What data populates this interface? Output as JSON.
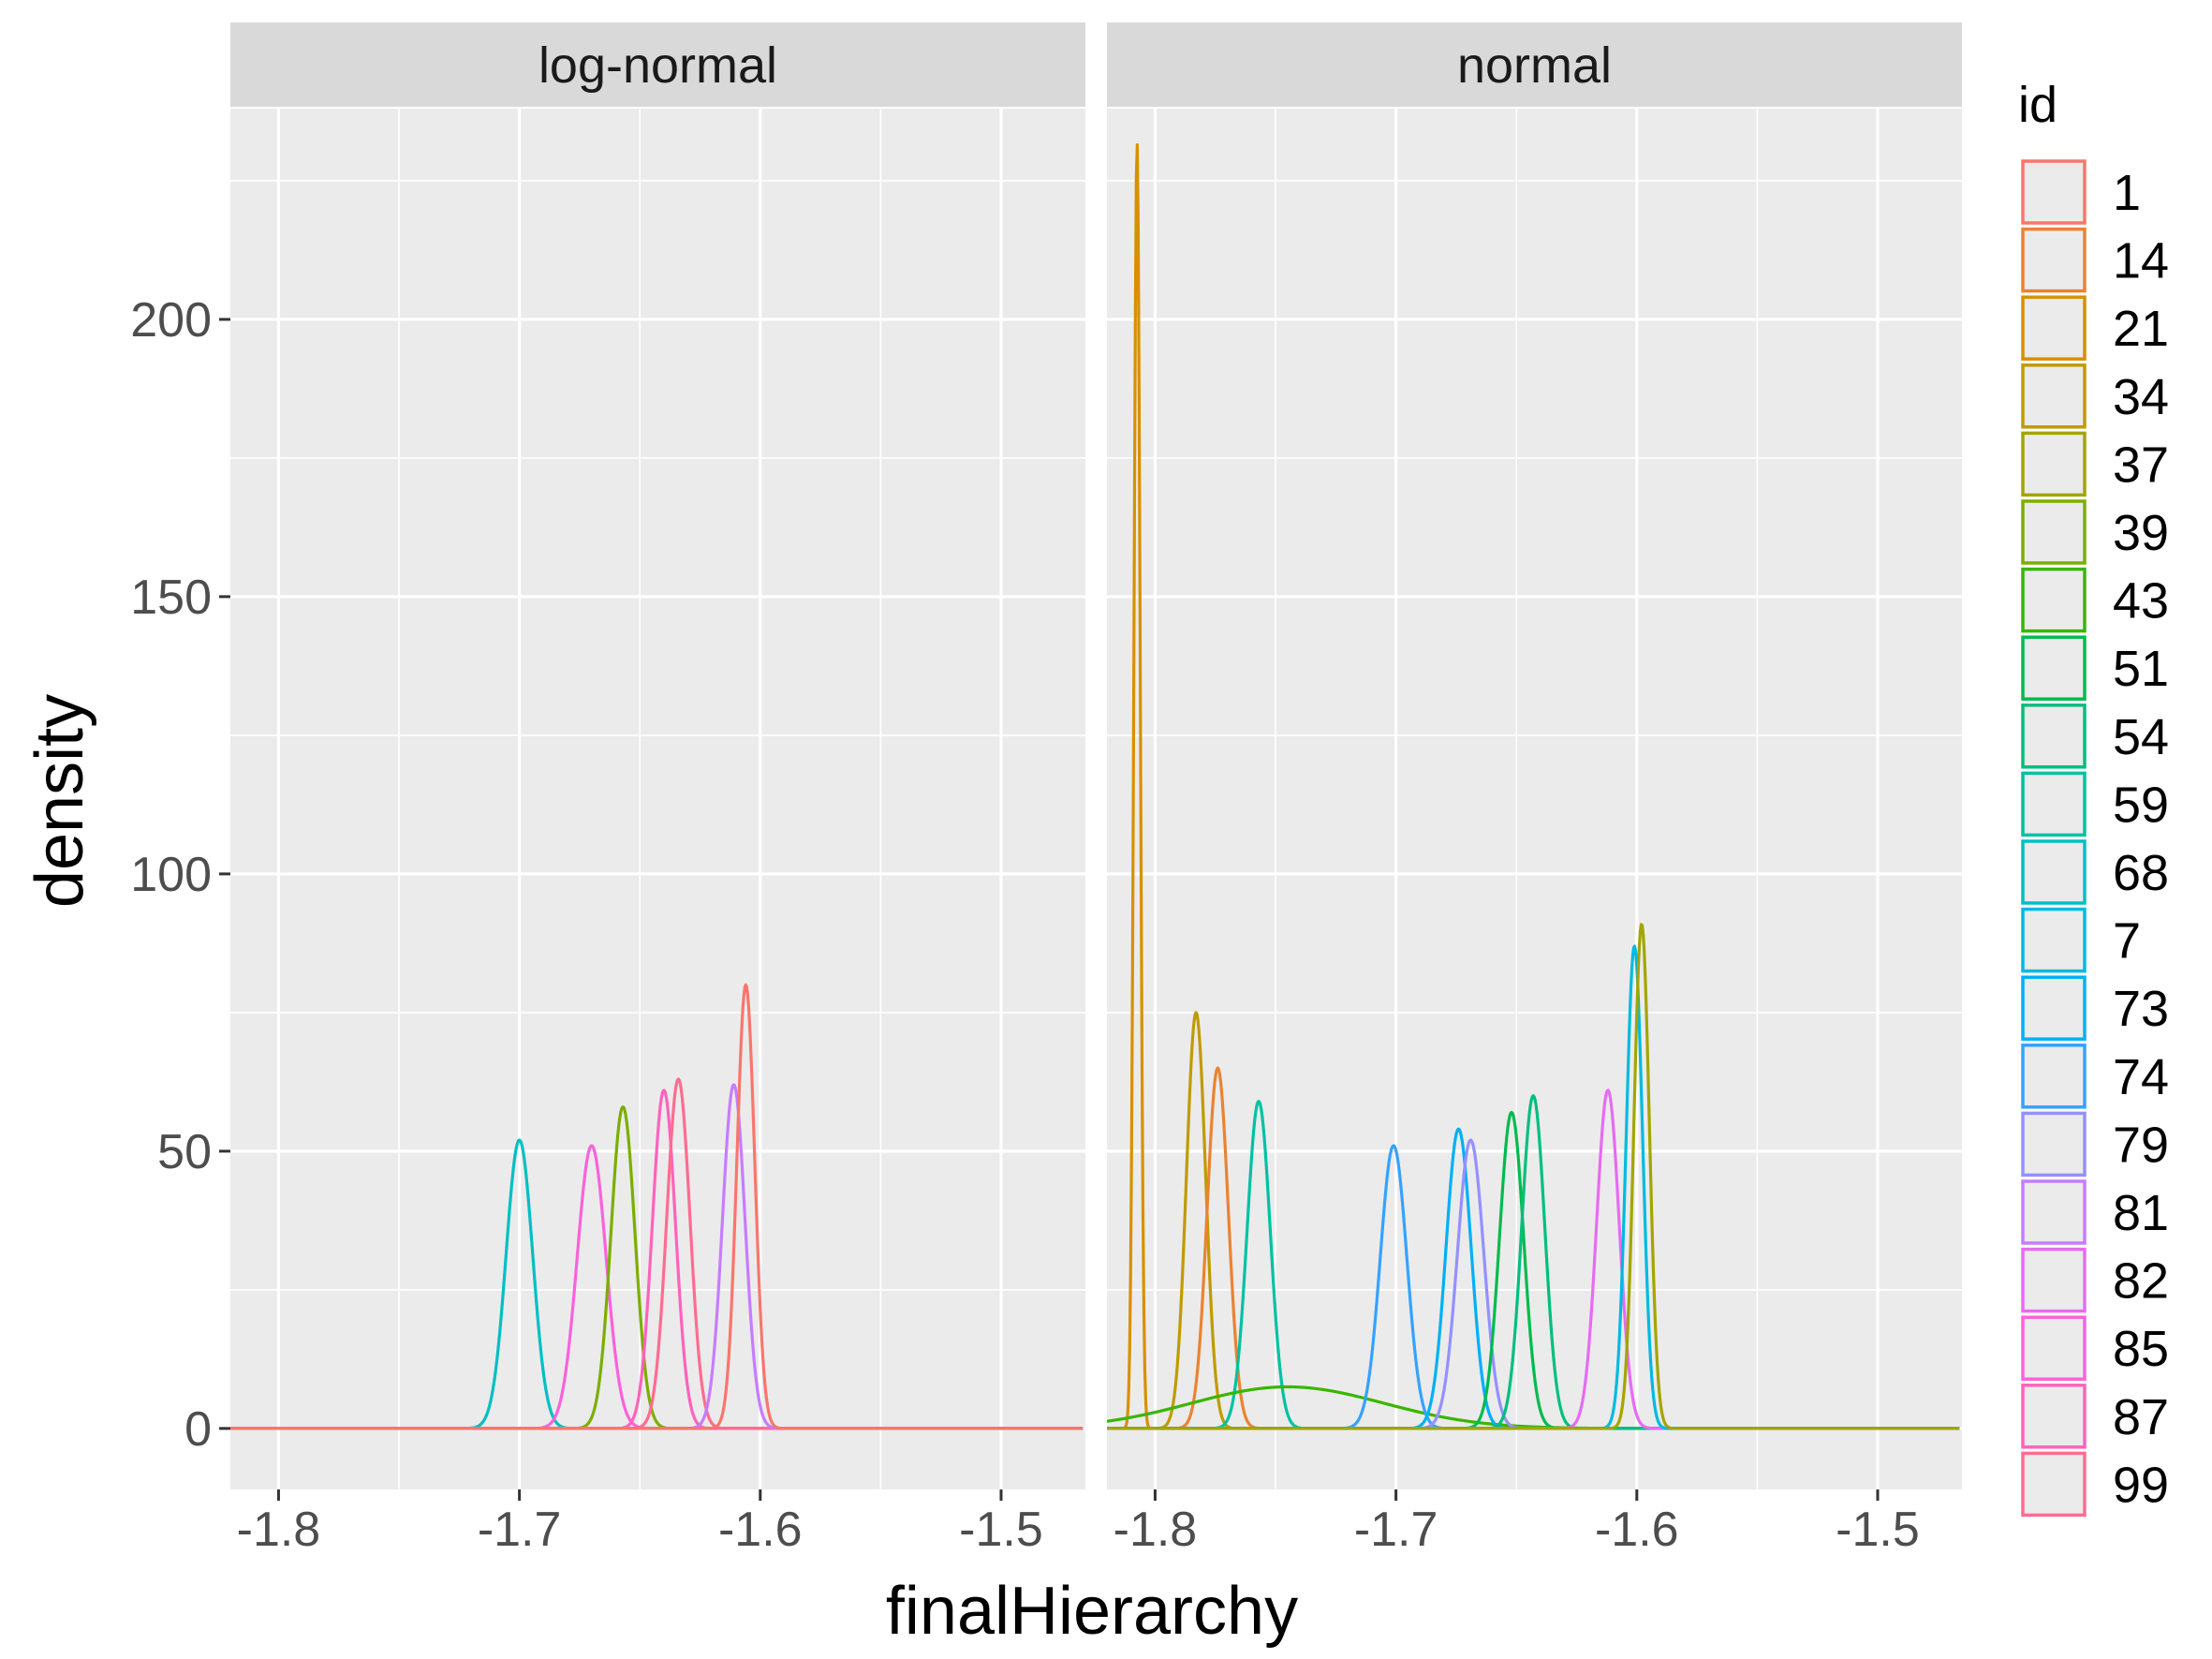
{
  "chart_data": {
    "type": "line",
    "geom": "density",
    "facets": [
      "log-normal",
      "normal"
    ],
    "xlabel": "finalHierarchy",
    "ylabel": "density",
    "xlim": [
      -1.82,
      -1.465
    ],
    "ylim": [
      -11,
      238
    ],
    "x_ticks": [
      -1.8,
      -1.7,
      -1.6,
      -1.5
    ],
    "x_tick_labels": [
      "-1.8",
      "-1.7",
      "-1.6",
      "-1.5"
    ],
    "y_ticks": [
      0,
      50,
      100,
      150,
      200
    ],
    "y_tick_labels": [
      "0",
      "50",
      "100",
      "150",
      "200"
    ],
    "grid": true,
    "legend": {
      "title": "id",
      "position": "right",
      "entries": [
        {
          "label": "1",
          "color": "#F8766D"
        },
        {
          "label": "14",
          "color": "#EA8331"
        },
        {
          "label": "21",
          "color": "#D89000"
        },
        {
          "label": "34",
          "color": "#C09B00"
        },
        {
          "label": "37",
          "color": "#A3A500"
        },
        {
          "label": "39",
          "color": "#7CAE00"
        },
        {
          "label": "43",
          "color": "#39B600"
        },
        {
          "label": "51",
          "color": "#00BB4E"
        },
        {
          "label": "54",
          "color": "#00BF7D"
        },
        {
          "label": "59",
          "color": "#00C1A3"
        },
        {
          "label": "68",
          "color": "#00BFC4"
        },
        {
          "label": "7",
          "color": "#00BAE0"
        },
        {
          "label": "73",
          "color": "#00B0F6"
        },
        {
          "label": "74",
          "color": "#35A2FF"
        },
        {
          "label": "79",
          "color": "#9590FF"
        },
        {
          "label": "81",
          "color": "#C77CFF"
        },
        {
          "label": "82",
          "color": "#E76BF3"
        },
        {
          "label": "85",
          "color": "#FA62DB"
        },
        {
          "label": "87",
          "color": "#FF62BC"
        },
        {
          "label": "99",
          "color": "#FF6C91"
        }
      ]
    },
    "series": [
      {
        "facet": "log-normal",
        "color": "#00BFC4",
        "peak_x": -1.7,
        "peak_y": 52,
        "sd": 0.0055
      },
      {
        "facet": "log-normal",
        "color": "#FA62DB",
        "peak_x": -1.67,
        "peak_y": 51,
        "sd": 0.006
      },
      {
        "facet": "log-normal",
        "color": "#7CAE00",
        "peak_x": -1.657,
        "peak_y": 58,
        "sd": 0.005
      },
      {
        "facet": "log-normal",
        "color": "#FF62BC",
        "peak_x": -1.64,
        "peak_y": 61,
        "sd": 0.0048
      },
      {
        "facet": "log-normal",
        "color": "#FF6C91",
        "peak_x": -1.634,
        "peak_y": 63,
        "sd": 0.0048
      },
      {
        "facet": "log-normal",
        "color": "#C77CFF",
        "peak_x": -1.611,
        "peak_y": 62,
        "sd": 0.0047
      },
      {
        "facet": "log-normal",
        "color": "#F8766D",
        "peak_x": -1.606,
        "peak_y": 80,
        "sd": 0.0037
      },
      {
        "facet": "normal",
        "color": "#D89000",
        "peak_x": -1.8075,
        "peak_y": 232,
        "sd": 0.0013
      },
      {
        "facet": "normal",
        "color": "#C09B00",
        "peak_x": -1.783,
        "peak_y": 75,
        "sd": 0.004
      },
      {
        "facet": "normal",
        "color": "#EA8331",
        "peak_x": -1.774,
        "peak_y": 65,
        "sd": 0.0044
      },
      {
        "facet": "normal",
        "color": "#00C1A3",
        "peak_x": -1.757,
        "peak_y": 59,
        "sd": 0.0048
      },
      {
        "facet": "normal",
        "color": "#39B600",
        "peak_x": -1.745,
        "peak_y": 7.5,
        "sd": 0.04
      },
      {
        "facet": "normal",
        "color": "#35A2FF",
        "peak_x": -1.701,
        "peak_y": 51,
        "sd": 0.0055
      },
      {
        "facet": "normal",
        "color": "#00B0F6",
        "peak_x": -1.674,
        "peak_y": 54,
        "sd": 0.0052
      },
      {
        "facet": "normal",
        "color": "#9590FF",
        "peak_x": -1.669,
        "peak_y": 52,
        "sd": 0.0055
      },
      {
        "facet": "normal",
        "color": "#00BB4E",
        "peak_x": -1.652,
        "peak_y": 57,
        "sd": 0.005
      },
      {
        "facet": "normal",
        "color": "#00BF7D",
        "peak_x": -1.643,
        "peak_y": 60,
        "sd": 0.0048
      },
      {
        "facet": "normal",
        "color": "#E76BF3",
        "peak_x": -1.612,
        "peak_y": 61,
        "sd": 0.0047
      },
      {
        "facet": "normal",
        "color": "#00BAE0",
        "peak_x": -1.601,
        "peak_y": 87,
        "sd": 0.0034
      },
      {
        "facet": "normal",
        "color": "#A3A500",
        "peak_x": -1.598,
        "peak_y": 91,
        "sd": 0.0032
      }
    ]
  }
}
